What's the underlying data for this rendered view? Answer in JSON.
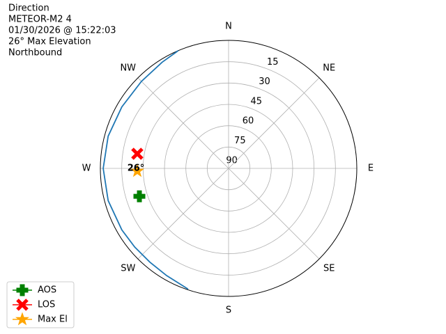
{
  "chart_data": {
    "type": "polar",
    "title_lines": [
      "Direction",
      "METEOR-M2 4",
      "01/30/2026 @ 15:22:03",
      "26° Max Elevation",
      "Northbound"
    ],
    "theta_zero": "N",
    "theta_direction": "clockwise",
    "rlim": [
      90,
      0
    ],
    "rticks": [
      15,
      30,
      45,
      60,
      75,
      90
    ],
    "thetaticks": [
      {
        "value": 0,
        "label": "N"
      },
      {
        "value": 45,
        "label": "NE"
      },
      {
        "value": 90,
        "label": "E"
      },
      {
        "value": 135,
        "label": "SE"
      },
      {
        "value": 180,
        "label": "S"
      },
      {
        "value": 225,
        "label": "SW"
      },
      {
        "value": 270,
        "label": "W"
      },
      {
        "value": 315,
        "label": "NW"
      }
    ],
    "grid": true,
    "series": [
      {
        "color": "#1f77b4",
        "theta": [
          198.5,
          210,
          220,
          230,
          240,
          255,
          270,
          285,
          300,
          315,
          328,
          336.9
        ],
        "r": [
          0.5,
          3,
          4,
          4,
          3.5,
          2.5,
          2,
          2.5,
          3.5,
          3.5,
          2,
          0
        ]
      }
    ],
    "markers": [
      {
        "name": "AOS",
        "color": "#008000",
        "marker": "plus",
        "theta": 252.6,
        "r": 24.4
      },
      {
        "name": "LOS",
        "color": "#ff0000",
        "marker": "x",
        "theta": 279.1,
        "r": 25.1
      },
      {
        "name": "Max El",
        "color": "#ffa500",
        "marker": "star",
        "theta": 268.3,
        "r": 25.9
      }
    ],
    "annotations": [
      {
        "text": "26°",
        "theta": 268.3,
        "r": 25.9
      }
    ],
    "legend": "lower left"
  }
}
